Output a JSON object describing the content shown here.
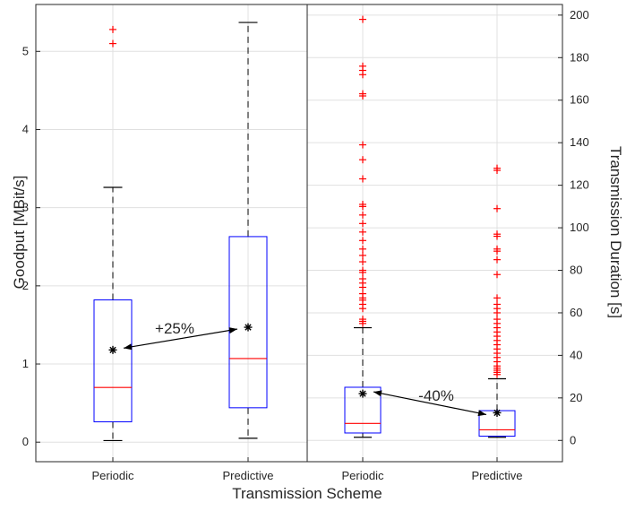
{
  "chart_data": [
    {
      "type": "boxplot",
      "panel": "left",
      "ylabel": "Goodput [MBit/s]",
      "ylim": [
        -0.25,
        5.6
      ],
      "yticks": [
        0,
        1,
        2,
        3,
        4,
        5
      ],
      "categories": [
        "Periodic",
        "Predictive"
      ],
      "boxes": [
        {
          "name": "Periodic",
          "whisker_low": 0.02,
          "q1": 0.26,
          "median": 0.7,
          "q3": 1.82,
          "whisker_high": 3.26,
          "mean": 1.18,
          "outliers": [
            5.1,
            5.28
          ]
        },
        {
          "name": "Predictive",
          "whisker_low": 0.05,
          "q1": 0.44,
          "median": 1.07,
          "q3": 2.63,
          "whisker_high": 5.37,
          "mean": 1.47,
          "outliers": []
        }
      ],
      "annotation": {
        "text": "+25%",
        "from": "Periodic",
        "to": "Predictive"
      }
    },
    {
      "type": "boxplot",
      "panel": "right",
      "ylabel": "Transmission Duration [s]",
      "ylim": [
        -10,
        205
      ],
      "yticks": [
        0,
        20,
        40,
        60,
        80,
        100,
        120,
        140,
        160,
        180,
        200
      ],
      "categories": [
        "Periodic",
        "Predictive"
      ],
      "boxes": [
        {
          "name": "Periodic",
          "whisker_low": 1.5,
          "q1": 3.5,
          "median": 8,
          "q3": 25,
          "whisker_high": 53,
          "mean": 22,
          "outliers": [
            55,
            56,
            57,
            62,
            64,
            66,
            67,
            69,
            72,
            74,
            76,
            79,
            80,
            84,
            87,
            90,
            94,
            98,
            102,
            106,
            110,
            111,
            123,
            132,
            139,
            162,
            163,
            172,
            174,
            176,
            198
          ]
        },
        {
          "name": "Predictive",
          "whisker_low": 1.5,
          "q1": 2,
          "median": 5,
          "q3": 14,
          "whisker_high": 29,
          "mean": 13,
          "outliers": [
            31,
            32,
            33,
            34,
            35,
            37,
            39,
            41,
            43,
            45,
            47,
            49,
            51,
            53,
            55,
            57,
            60,
            62,
            64,
            67,
            78,
            85,
            89,
            90,
            96,
            97,
            109,
            127,
            128
          ]
        }
      ],
      "annotation": {
        "text": "-40%",
        "from": "Periodic",
        "to": "Predictive"
      }
    }
  ],
  "xlabel": "Transmission Scheme",
  "colors": {
    "box": "#0000ff",
    "median": "#ff0000",
    "outlier": "#ff0000",
    "whisker": "#000000",
    "grid": "#e0e0e0"
  }
}
